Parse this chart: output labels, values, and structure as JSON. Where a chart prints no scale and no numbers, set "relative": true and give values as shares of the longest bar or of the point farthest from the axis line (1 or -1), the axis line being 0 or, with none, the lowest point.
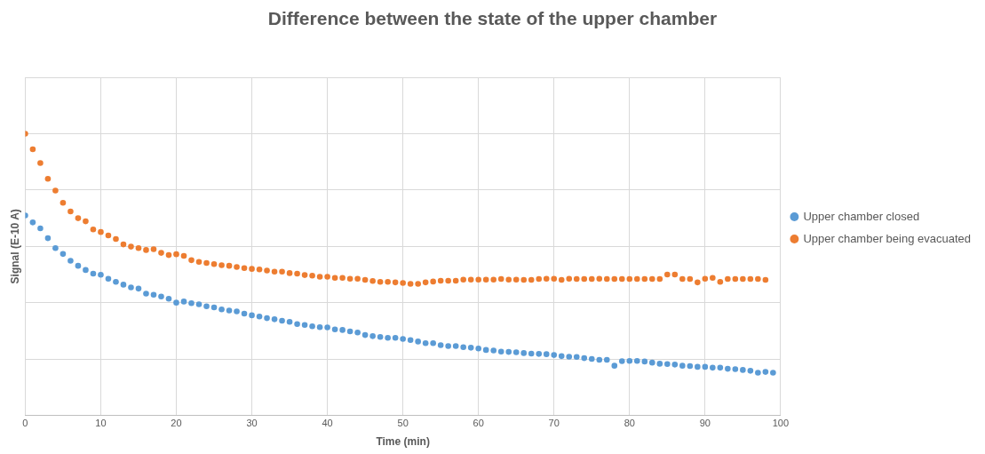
{
  "chart_data": {
    "type": "scatter",
    "title": "Difference between the state of the upper chamber",
    "xlabel": "Time (min)",
    "ylabel": "Signal (E-10 A)",
    "relative": true,
    "xlim": [
      0,
      100
    ],
    "xticks": [
      0,
      10,
      20,
      30,
      40,
      50,
      60,
      70,
      80,
      90,
      100
    ],
    "grid": true,
    "legend": "right",
    "marker": "circle",
    "x": [
      0,
      1,
      2,
      3,
      4,
      5,
      6,
      7,
      8,
      9,
      10,
      11,
      12,
      13,
      14,
      15,
      16,
      17,
      18,
      19,
      20,
      21,
      22,
      23,
      24,
      25,
      26,
      27,
      28,
      29,
      30,
      31,
      32,
      33,
      34,
      35,
      36,
      37,
      38,
      39,
      40,
      41,
      42,
      43,
      44,
      45,
      46,
      47,
      48,
      49,
      50,
      51,
      52,
      53,
      54,
      55,
      56,
      57,
      58,
      59,
      60,
      61,
      62,
      63,
      64,
      65,
      66,
      67,
      68,
      69,
      70,
      71,
      72,
      73,
      74,
      75,
      76,
      77,
      78,
      79,
      80,
      81,
      82,
      83,
      84,
      85,
      86,
      87,
      88,
      89,
      90,
      91,
      92,
      93,
      94,
      95,
      96,
      97,
      98,
      99
    ],
    "series": [
      {
        "name": "Upper chamber closed",
        "color": "#5b9bd5",
        "values": [
          0.71,
          0.685,
          0.664,
          0.629,
          0.594,
          0.573,
          0.549,
          0.531,
          0.516,
          0.503,
          0.499,
          0.485,
          0.474,
          0.464,
          0.454,
          0.45,
          0.432,
          0.428,
          0.422,
          0.414,
          0.4,
          0.404,
          0.398,
          0.394,
          0.387,
          0.383,
          0.376,
          0.372,
          0.369,
          0.361,
          0.355,
          0.351,
          0.345,
          0.341,
          0.336,
          0.332,
          0.324,
          0.321,
          0.316,
          0.313,
          0.312,
          0.305,
          0.303,
          0.298,
          0.294,
          0.285,
          0.281,
          0.278,
          0.275,
          0.275,
          0.271,
          0.267,
          0.262,
          0.256,
          0.256,
          0.249,
          0.246,
          0.246,
          0.242,
          0.24,
          0.237,
          0.232,
          0.23,
          0.226,
          0.225,
          0.224,
          0.221,
          0.219,
          0.218,
          0.217,
          0.214,
          0.21,
          0.208,
          0.207,
          0.203,
          0.2,
          0.197,
          0.197,
          0.176,
          0.192,
          0.193,
          0.193,
          0.191,
          0.187,
          0.183,
          0.182,
          0.18,
          0.176,
          0.175,
          0.172,
          0.172,
          0.169,
          0.169,
          0.165,
          0.164,
          0.161,
          0.158,
          0.151,
          0.154,
          0.151
        ]
      },
      {
        "name": "Upper chamber being evacuated",
        "color": "#ed7d31",
        "values": [
          1,
          0.945,
          0.896,
          0.84,
          0.798,
          0.755,
          0.724,
          0.7,
          0.689,
          0.66,
          0.651,
          0.639,
          0.626,
          0.607,
          0.599,
          0.594,
          0.587,
          0.59,
          0.577,
          0.569,
          0.572,
          0.566,
          0.551,
          0.545,
          0.541,
          0.537,
          0.533,
          0.531,
          0.527,
          0.523,
          0.52,
          0.518,
          0.514,
          0.51,
          0.51,
          0.505,
          0.503,
          0.498,
          0.496,
          0.492,
          0.492,
          0.488,
          0.488,
          0.485,
          0.485,
          0.481,
          0.477,
          0.474,
          0.474,
          0.472,
          0.47,
          0.467,
          0.467,
          0.472,
          0.475,
          0.478,
          0.478,
          0.478,
          0.482,
          0.482,
          0.482,
          0.482,
          0.482,
          0.484,
          0.482,
          0.482,
          0.481,
          0.481,
          0.484,
          0.485,
          0.485,
          0.481,
          0.485,
          0.484,
          0.484,
          0.484,
          0.485,
          0.484,
          0.484,
          0.484,
          0.484,
          0.484,
          0.484,
          0.484,
          0.484,
          0.5,
          0.5,
          0.484,
          0.484,
          0.472,
          0.485,
          0.488,
          0.474,
          0.484,
          0.484,
          0.484,
          0.484,
          0.484,
          0.481,
          null
        ]
      }
    ]
  }
}
